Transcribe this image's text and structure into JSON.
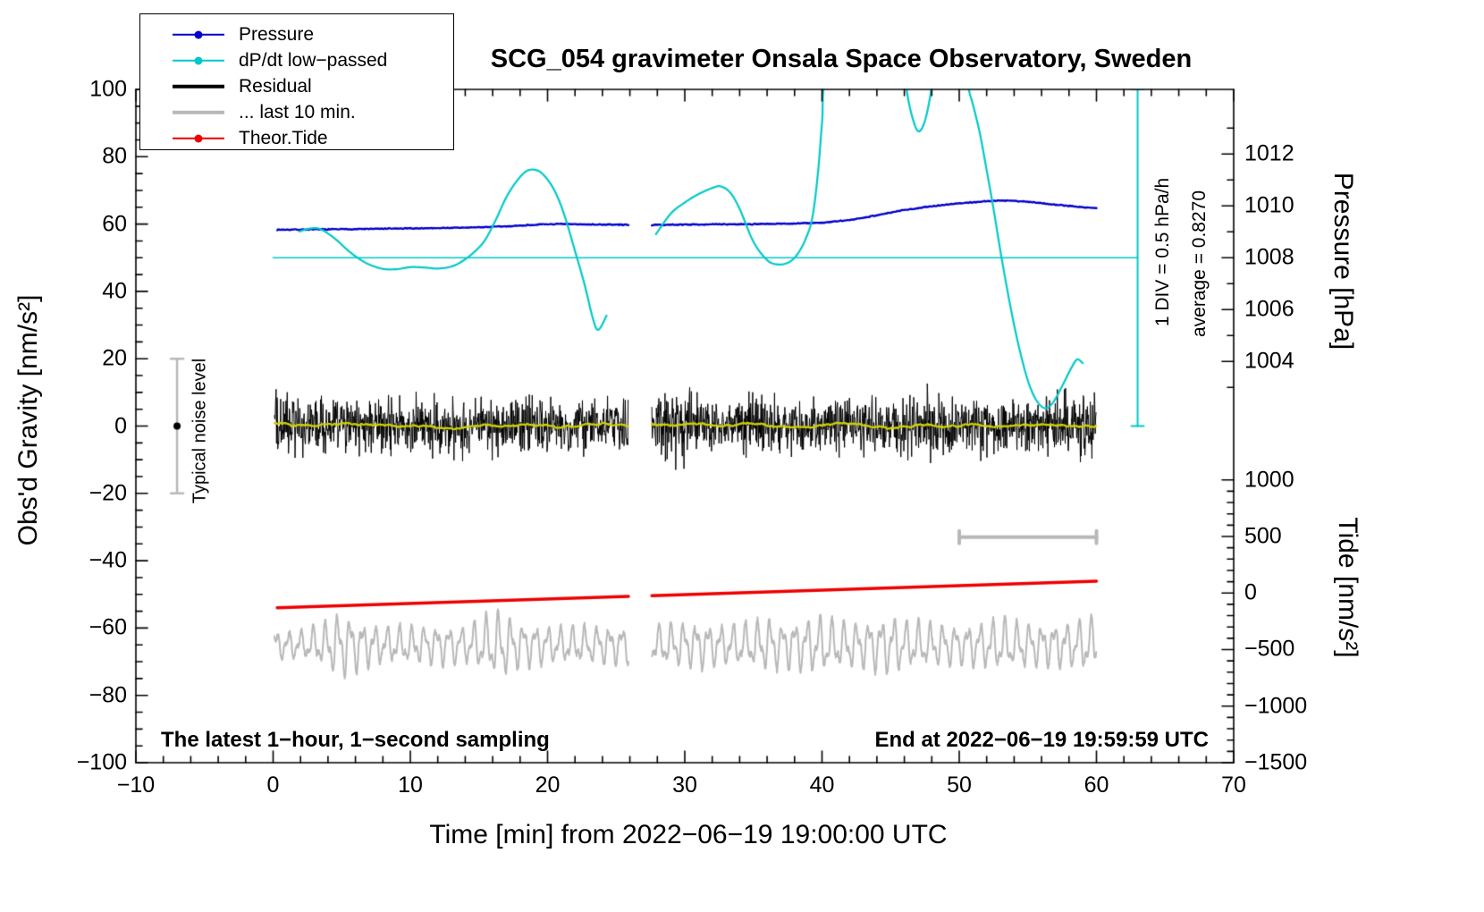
{
  "title": "SCG_054 gravimeter Onsala Space Observatory, Sweden",
  "legend": {
    "items": [
      {
        "label": "Pressure",
        "color": "#0000cd",
        "marker": "dot",
        "line": "thin",
        "icon": "pressure-line-icon"
      },
      {
        "label": "dP/dt low−passed",
        "color": "#00c8c8",
        "marker": "dot",
        "line": "thin",
        "icon": "dpdt-line-icon"
      },
      {
        "label": "Residual",
        "color": "#000000",
        "marker": "none",
        "line": "thick",
        "icon": "residual-line-icon"
      },
      {
        "label": "... last 10 min.",
        "color": "#b8b8b8",
        "marker": "none",
        "line": "thick",
        "icon": "last10-line-icon"
      },
      {
        "label": "Theor.Tide",
        "color": "#ee0000",
        "marker": "dot",
        "line": "thin",
        "icon": "tide-line-icon"
      }
    ]
  },
  "annotations": {
    "noise_label": "Typical noise level",
    "div_label": "1 DIV = 0.5 hPa/h",
    "average_label": "average = 0.8270",
    "sampling_note": "The latest 1−hour, 1−second sampling",
    "end_note": "End at 2022−06−19 19:59:59 UTC"
  },
  "chart_data": {
    "type": "line",
    "title": "SCG_054 gravimeter Onsala Space Observatory, Sweden",
    "grid": false,
    "legend_position": "top-left",
    "x_axis": {
      "label": "Time [min] from 2022−06−19 19:00:00 UTC",
      "range": [
        -10,
        70
      ],
      "ticks": [
        -10,
        0,
        10,
        20,
        30,
        40,
        50,
        60,
        70
      ],
      "tick_labels": [
        "−10",
        "0",
        "10",
        "20",
        "30",
        "40",
        "50",
        "60",
        "70"
      ],
      "minor_step": 2
    },
    "y_axis": {
      "label": "Obs'd Gravity [nm/s²]",
      "range": [
        -100,
        100
      ],
      "ticks": [
        -100,
        -80,
        -60,
        -40,
        -20,
        0,
        20,
        40,
        60,
        80,
        100
      ],
      "tick_labels": [
        "−100",
        "−80",
        "−60",
        "−40",
        "−20",
        "0",
        "20",
        "40",
        "60",
        "80",
        "100"
      ],
      "minor_step": 5
    },
    "pressure_axis": {
      "label": "Pressure [hPa]",
      "ticks": [
        1012,
        1010,
        1008,
        1006,
        1004
      ],
      "tick_labels": [
        "1012",
        "1010",
        "1008",
        "1006",
        "1004"
      ],
      "minor_step": 1,
      "gravity_at_1008": 50,
      "gravity_per_hpa": 7.7
    },
    "tide_axis": {
      "label": "Tide [nm/s²]",
      "ticks": [
        1000,
        500,
        0,
        -500,
        -1000,
        -1500
      ],
      "tick_labels": [
        "1000",
        "500",
        "0",
        "−500",
        "−1000",
        "−1500"
      ],
      "minor_step": 100,
      "gravity_at_zero": -49.6,
      "gravity_per_unit": 0.0336
    },
    "series": {
      "pressure": {
        "name": "Pressure",
        "color": "#0000cd",
        "width": 2.4,
        "units": "hPa",
        "jitter": 0.18,
        "seed": 7,
        "segments": [
          [
            [
              0.3,
              1009.08
            ],
            [
              5,
              1009.1
            ],
            [
              10,
              1009.13
            ],
            [
              14,
              1009.16
            ],
            [
              17,
              1009.21
            ],
            [
              19,
              1009.27
            ],
            [
              20.5,
              1009.3
            ],
            [
              22,
              1009.29
            ],
            [
              24,
              1009.28
            ],
            [
              25.9,
              1009.27
            ]
          ],
          [
            [
              27.6,
              1009.26
            ],
            [
              30,
              1009.28
            ],
            [
              33,
              1009.29
            ],
            [
              36,
              1009.3
            ],
            [
              38,
              1009.32
            ],
            [
              40,
              1009.35
            ],
            [
              42,
              1009.45
            ],
            [
              44,
              1009.64
            ],
            [
              46,
              1009.84
            ],
            [
              48,
              1009.99
            ],
            [
              50,
              1010.1
            ],
            [
              52,
              1010.18
            ],
            [
              53.5,
              1010.21
            ],
            [
              55,
              1010.16
            ],
            [
              57,
              1010.05
            ],
            [
              59,
              1009.95
            ],
            [
              60,
              1009.91
            ]
          ]
        ]
      },
      "dpdt": {
        "name": "dP/dt low−passed",
        "color": "#00c8c8",
        "width": 2.2,
        "units": "gravity",
        "smooth": true,
        "segments": [
          [
            [
              1.9,
              57.8
            ],
            [
              2.6,
              58.6
            ],
            [
              3.3,
              58.7
            ],
            [
              4,
              57.2
            ],
            [
              4.7,
              55
            ],
            [
              5.5,
              52
            ],
            [
              6.3,
              49.6
            ],
            [
              7,
              48
            ],
            [
              8,
              46.7
            ],
            [
              9,
              46.6
            ],
            [
              10,
              47.2
            ],
            [
              11,
              47.1
            ],
            [
              12,
              46.8
            ],
            [
              13,
              47.4
            ],
            [
              13.8,
              49
            ],
            [
              14.6,
              51.5
            ],
            [
              15.4,
              55
            ],
            [
              16.2,
              61
            ],
            [
              17,
              68
            ],
            [
              17.8,
              73
            ],
            [
              18.5,
              75.8
            ],
            [
              19.2,
              76
            ],
            [
              19.8,
              74.2
            ],
            [
              20.5,
              70
            ],
            [
              21.2,
              63
            ],
            [
              22,
              52
            ],
            [
              22.7,
              42
            ],
            [
              23.3,
              32
            ],
            [
              23.7,
              28.6
            ],
            [
              24.3,
              32.8
            ]
          ],
          [
            [
              27.9,
              57
            ],
            [
              29,
              63.2
            ],
            [
              30,
              66.4
            ],
            [
              31,
              68.9
            ],
            [
              32,
              70.7
            ],
            [
              32.6,
              71.2
            ],
            [
              33.3,
              69.4
            ],
            [
              34,
              64.5
            ],
            [
              35,
              54.8
            ],
            [
              36,
              49.3
            ],
            [
              36.8,
              48
            ],
            [
              37.6,
              48.7
            ],
            [
              38.2,
              51
            ],
            [
              38.8,
              55.5
            ],
            [
              39.3,
              62
            ],
            [
              39.7,
              75
            ],
            [
              40,
              90
            ],
            [
              40.4,
              108
            ],
            [
              43,
              150
            ],
            [
              45.8,
              112
            ],
            [
              46.2,
              99
            ],
            [
              46.6,
              91.5
            ],
            [
              47,
              87.6
            ],
            [
              47.4,
              89.5
            ],
            [
              47.8,
              96
            ],
            [
              48.2,
              107
            ],
            [
              49.3,
              140
            ],
            [
              50.3,
              110
            ],
            [
              50.7,
              100
            ],
            [
              51,
              95.5
            ],
            [
              51.5,
              87
            ],
            [
              52,
              76
            ],
            [
              52.5,
              64.5
            ],
            [
              53,
              52
            ],
            [
              53.5,
              40.5
            ],
            [
              54,
              30
            ],
            [
              54.5,
              21
            ],
            [
              55,
              13.5
            ],
            [
              55.5,
              8.5
            ],
            [
              56,
              5.8
            ],
            [
              56.4,
              5.4
            ],
            [
              56.8,
              6.8
            ],
            [
              57.2,
              9.5
            ],
            [
              57.7,
              13.5
            ],
            [
              58.2,
              17.5
            ],
            [
              58.6,
              19.8
            ],
            [
              59,
              18.7
            ]
          ]
        ]
      },
      "residual": {
        "name": "Residual",
        "color": "#000000",
        "width": 1,
        "type": "noise",
        "seed": 12345,
        "step": 0.03,
        "baseline": 0,
        "segments_x": [
          [
            0.1,
            25.9
          ],
          [
            27.6,
            60
          ]
        ],
        "envelope": [
          [
            0,
            12
          ],
          [
            0.7,
            9
          ],
          [
            2,
            7.5
          ],
          [
            3,
            8
          ],
          [
            4,
            9.5
          ],
          [
            5,
            8
          ],
          [
            6,
            7.5
          ],
          [
            7,
            8.5
          ],
          [
            8,
            9.5
          ],
          [
            9,
            8
          ],
          [
            10,
            7.5
          ],
          [
            12,
            7.5
          ],
          [
            13,
            8
          ],
          [
            14,
            8.5
          ],
          [
            15,
            7.5
          ],
          [
            17,
            7.5
          ],
          [
            18,
            8
          ],
          [
            19,
            9.5
          ],
          [
            19.8,
            12
          ],
          [
            20.6,
            8
          ],
          [
            22,
            7.5
          ],
          [
            24,
            7.5
          ],
          [
            25.9,
            8
          ],
          [
            27.6,
            8.5
          ],
          [
            28.5,
            10
          ],
          [
            29.5,
            12
          ],
          [
            30.5,
            10
          ],
          [
            31.5,
            8.5
          ],
          [
            33,
            8
          ],
          [
            34.5,
            8.5
          ],
          [
            35.5,
            9.5
          ],
          [
            36.5,
            8.5
          ],
          [
            38,
            7.5
          ],
          [
            39.5,
            7.5
          ],
          [
            41,
            8.5
          ],
          [
            42.5,
            7.5
          ],
          [
            44,
            7.5
          ],
          [
            45.5,
            8
          ],
          [
            46.5,
            9
          ],
          [
            47.5,
            9.5
          ],
          [
            48.5,
            8.5
          ],
          [
            50,
            7.5
          ],
          [
            51.5,
            8.5
          ],
          [
            53,
            7.5
          ],
          [
            54.5,
            7.5
          ],
          [
            56,
            8
          ],
          [
            57.5,
            9
          ],
          [
            59,
            8.5
          ],
          [
            60,
            8.5
          ]
        ],
        "smooth_color": "#d0d000",
        "smooth_window": 35,
        "smooth_width": 2.2
      },
      "last10": {
        "name": "... last 10 min.",
        "color": "#b8b8b8",
        "width": 2,
        "type": "oscillation",
        "baseline": -65,
        "seed": 999,
        "step": 0.02,
        "segments_x": [
          [
            0.1,
            25.9
          ],
          [
            27.6,
            60
          ]
        ],
        "periods": [
          0.9,
          0.42
        ],
        "phase": [
          0,
          1.7
        ],
        "mix": [
          1,
          0.5
        ],
        "noise": 1.0,
        "envelope": [
          [
            0,
            3.2
          ],
          [
            2,
            3
          ],
          [
            3.5,
            4.5
          ],
          [
            4.5,
            6.5
          ],
          [
            5.5,
            6.8
          ],
          [
            6.5,
            5
          ],
          [
            8,
            4
          ],
          [
            10,
            4
          ],
          [
            12,
            4.2
          ],
          [
            14,
            4
          ],
          [
            15.3,
            6
          ],
          [
            16.3,
            7.2
          ],
          [
            17.3,
            6
          ],
          [
            18.5,
            4.5
          ],
          [
            20,
            4
          ],
          [
            22,
            4
          ],
          [
            24,
            4
          ],
          [
            25.9,
            4
          ],
          [
            27.6,
            4
          ],
          [
            29,
            4.5
          ],
          [
            31,
            5
          ],
          [
            33,
            4.2
          ],
          [
            35,
            5
          ],
          [
            36,
            5.8
          ],
          [
            37,
            5
          ],
          [
            38.5,
            5.5
          ],
          [
            40,
            6.2
          ],
          [
            41.5,
            5
          ],
          [
            43,
            5
          ],
          [
            44,
            5.8
          ],
          [
            45,
            6.3
          ],
          [
            46,
            5.2
          ],
          [
            47,
            5
          ],
          [
            48,
            4.6
          ],
          [
            50,
            4.2
          ],
          [
            52,
            5
          ],
          [
            53,
            5.8
          ],
          [
            54,
            5
          ],
          [
            56,
            4.6
          ],
          [
            58,
            5
          ],
          [
            59.5,
            6
          ],
          [
            60,
            5.5
          ]
        ]
      },
      "tide": {
        "name": "Theor.Tide",
        "color": "#ee0000",
        "width": 3.5,
        "units": "tide",
        "segments": [
          [
            [
              0.3,
              -130
            ],
            [
              25.9,
              -30
            ]
          ],
          [
            [
              27.6,
              -23
            ],
            [
              60,
              105
            ]
          ]
        ]
      }
    },
    "extras": {
      "dpdt_zero_line": {
        "color": "#00c8c8",
        "y": 50,
        "x_from": 0,
        "x_to": 63,
        "width": 1.6
      },
      "dpdt_scale_bar": {
        "color": "#00c8c8",
        "x": 63,
        "y_from": 0,
        "y_to": 100,
        "width": 2,
        "cap": 7
      },
      "noise_level_bar": {
        "color": "#b8b8b8",
        "x": -7,
        "y_from": -20,
        "y_to": 20,
        "width": 2.5,
        "cap": 7,
        "dot_y": 0,
        "dot_color": "#000000",
        "dot_r": 4
      },
      "last10_window_bar": {
        "color": "#b8b8b8",
        "y": -33,
        "x_from": 50,
        "x_to": 60,
        "width": 4,
        "cap": 7
      }
    }
  }
}
